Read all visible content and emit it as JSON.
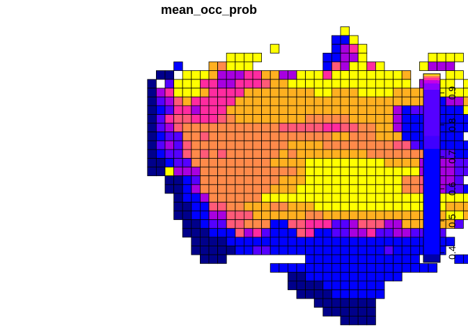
{
  "chart_data": {
    "type": "heatmap",
    "title": "mean_occ_prob",
    "grid": false,
    "legend": {
      "placement": "right",
      "ticks": [
        "0.4",
        "0.5",
        "0.6",
        "0.7",
        "0.8",
        "0.9"
      ],
      "tick_values": [
        0.4,
        0.5,
        0.6,
        0.7,
        0.8,
        0.9
      ],
      "range": [
        0.37,
        0.96
      ],
      "bands": [
        {
          "from": 0.37,
          "to": 0.395,
          "color": "#0000A8"
        },
        {
          "from": 0.395,
          "to": 0.725,
          "color": "#0000FF"
        },
        {
          "from": 0.725,
          "to": 0.765,
          "color": "#3F00FF"
        },
        {
          "from": 0.765,
          "to": 0.91,
          "color": "#5500FF"
        },
        {
          "from": 0.91,
          "to": 0.93,
          "color": "#8C00FF"
        },
        {
          "from": 0.93,
          "to": 0.94,
          "color": "#C400E8"
        },
        {
          "from": 0.94,
          "to": 0.948,
          "color": "#FF3399"
        },
        {
          "from": 0.948,
          "to": 0.954,
          "color": "#FF7F55"
        },
        {
          "from": 0.954,
          "to": 0.96,
          "color": "#FFD700"
        }
      ]
    },
    "palette": {
      "0": "#00008B",
      "1": "#0000FF",
      "2": "#5500FF",
      "3": "#A800E0",
      "4": "#FF2BA0",
      "5": "#FF5A78",
      "6": "#FF8A4A",
      "7": "#FFB020",
      "8": "#FFFF00"
    },
    "value_levels": [
      0.38,
      0.55,
      0.8,
      0.915,
      0.938,
      0.944,
      0.95,
      0.955,
      0.96
    ],
    "grid_origin_row": 0,
    "rows": [
      "..............................8.......................",
      ".............................118.......................",
      "......................8......1348.....................",
      ".................8888.......11338.......8888..........",
      "...........1...76888........1538848....8333...........",
      ".........00.88873334477338884888888887....88..11......",
      "........0.2888443344457788888888888888.3388.8..11.....",
      "........03488874444777777778877788887777788888886.....",
      "........0235744444777777777777777777777711337776......",
      "........01244344477777777777777777773122211188........",
      "........02455444567777777766666777773111111111........",
      "........0235666666666665555544556677311111111.........",
      "........012266566666666666666776667771111111..........",
      "........02325666666666667777666666665521111111.........",
      "........012256565666666767777777766666666221111........",
      "........00122666666666777788888888877773.3322..........",
      "........0083336666666666678888888888888333322..........",
      "..........0012666666666777888888888886653332...........",
      "..........00136666666677788888888888866543221..........",
      "...........01136666668888888888888888888888888.........",
      "...........0011556677766777888888888888888777773.......",
      "...........00113355577777766777777777777778872.........",
      "............00122556661155444223555337777772...........",
      "............000111534211154112233422332222.............",
      ".............000011111111111111111111111111............",
      ".............00000112211111111111112111111.............",
      "..............000.........1111111111111....11..........",
      "......................1111111111111111111..............",
      "........................0011111111111..................",
      "........................00001111111....................",
      ".........................0000111111....................",
      "...........................0000000.....................",
      "............................000000.....................",
      "..............................0000....................."
    ]
  }
}
